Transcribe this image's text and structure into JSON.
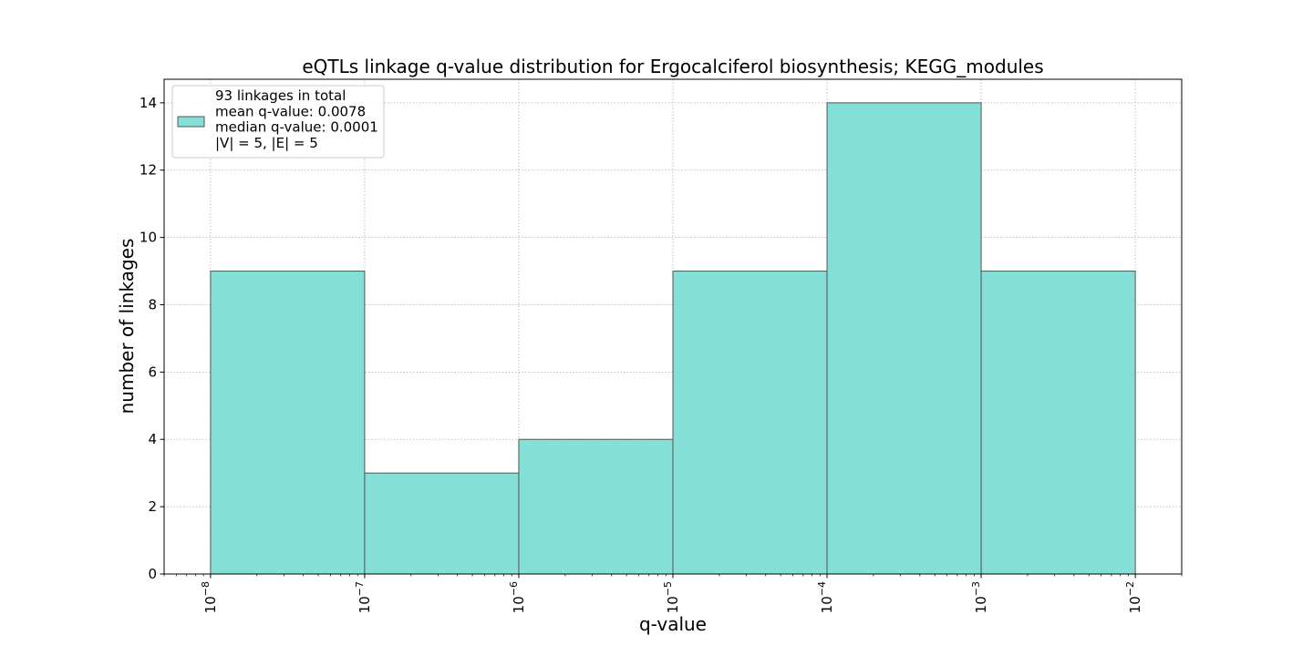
{
  "chart_data": {
    "type": "bar",
    "title": "eQTLs linkage q-value distribution for Ergocalciferol biosynthesis; KEGG_modules",
    "xlabel": "q-value",
    "ylabel": "number of linkages",
    "x_scale": "log",
    "xlim": [
      5e-09,
      0.02
    ],
    "ylim": [
      0,
      14.7
    ],
    "grid": true,
    "bar_color": "#84e0d6",
    "edge_color": "#555555",
    "bins": [
      {
        "left": 1e-08,
        "right": 1e-07,
        "value": 9
      },
      {
        "left": 1e-07,
        "right": 1e-06,
        "value": 3
      },
      {
        "left": 1e-06,
        "right": 1e-05,
        "value": 4
      },
      {
        "left": 1e-05,
        "right": 0.0001,
        "value": 9
      },
      {
        "left": 0.0001,
        "right": 0.001,
        "value": 14
      },
      {
        "left": 0.001,
        "right": 0.01,
        "value": 9
      }
    ],
    "x_ticks": [
      {
        "value": 1e-08,
        "base": "10",
        "exp": "−8"
      },
      {
        "value": 1e-07,
        "base": "10",
        "exp": "−7"
      },
      {
        "value": 1e-06,
        "base": "10",
        "exp": "−6"
      },
      {
        "value": 1e-05,
        "base": "10",
        "exp": "−5"
      },
      {
        "value": 0.0001,
        "base": "10",
        "exp": "−4"
      },
      {
        "value": 0.001,
        "base": "10",
        "exp": "−3"
      },
      {
        "value": 0.01,
        "base": "10",
        "exp": "−2"
      }
    ],
    "y_ticks": [
      0,
      2,
      4,
      6,
      8,
      10,
      12,
      14
    ],
    "legend": {
      "placement": "top-left",
      "lines": [
        "93 linkages in total",
        "mean q-value: 0.0078",
        "median q-value: 0.0001",
        "|V| = 5, |E| = 5"
      ]
    }
  }
}
